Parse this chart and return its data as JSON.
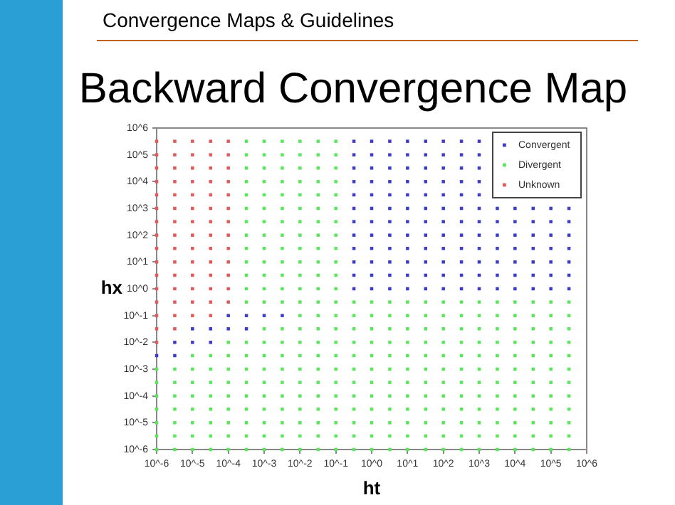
{
  "chart_data": {
    "type": "scatter",
    "title": "Backward Convergence Map",
    "annotations": [
      "Convergence Maps & Guidelines"
    ],
    "xlabel": "ht",
    "ylabel": "hx",
    "log": "xy",
    "grid": false,
    "legend": "top right",
    "marker": "square",
    "xlim": [
      1e-06,
      1000000.0
    ],
    "ylim": [
      1e-06,
      1000000.0
    ],
    "xticks": [
      {
        "value": 1e-06,
        "label": "10^-6"
      },
      {
        "value": 1e-05,
        "label": "10^-5"
      },
      {
        "value": 0.0001,
        "label": "10^-4"
      },
      {
        "value": 0.001,
        "label": "10^-3"
      },
      {
        "value": 0.01,
        "label": "10^-2"
      },
      {
        "value": 0.1,
        "label": "10^-1"
      },
      {
        "value": 1,
        "label": "10^0"
      },
      {
        "value": 10,
        "label": "10^1"
      },
      {
        "value": 100,
        "label": "10^2"
      },
      {
        "value": 1000,
        "label": "10^3"
      },
      {
        "value": 10000.0,
        "label": "10^4"
      },
      {
        "value": 100000.0,
        "label": "10^5"
      },
      {
        "value": 1000000.0,
        "label": "10^6"
      }
    ],
    "yticks": [
      {
        "value": 1e-06,
        "label": "10^-6"
      },
      {
        "value": 1e-05,
        "label": "10^-5"
      },
      {
        "value": 0.0001,
        "label": "10^-4"
      },
      {
        "value": 0.001,
        "label": "10^-3"
      },
      {
        "value": 0.01,
        "label": "10^-2"
      },
      {
        "value": 0.1,
        "label": "10^-1"
      },
      {
        "value": 1,
        "label": "10^0"
      },
      {
        "value": 10,
        "label": "10^1"
      },
      {
        "value": 100,
        "label": "10^2"
      },
      {
        "value": 1000,
        "label": "10^3"
      },
      {
        "value": 10000.0,
        "label": "10^4"
      },
      {
        "value": 100000.0,
        "label": "10^5"
      },
      {
        "value": 1000000.0,
        "label": "10^6"
      }
    ],
    "series": [
      {
        "name": "Convergent",
        "color": "#3c3cc8",
        "x": [
          1e-06,
          3.2e-06,
          3.2e-06,
          1e-05,
          1e-05,
          3.2e-05,
          3.2e-05,
          0.0001,
          0.0001,
          0.00032,
          0.00032,
          0.001,
          0.0032,
          0.32,
          0.32,
          0.32,
          0.32,
          0.32,
          0.32,
          0.32,
          0.32,
          0.32,
          0.32,
          0.32,
          0.32,
          1,
          1,
          1,
          1,
          1,
          1,
          1,
          1,
          1,
          1,
          1,
          1,
          3.2,
          3.2,
          3.2,
          3.2,
          3.2,
          3.2,
          3.2,
          3.2,
          3.2,
          3.2,
          3.2,
          3.2,
          10,
          10,
          10,
          10,
          10,
          10,
          10,
          10,
          10,
          10,
          10,
          10,
          32,
          32,
          32,
          32,
          32,
          32,
          32,
          32,
          32,
          32,
          32,
          32,
          100,
          100,
          100,
          100,
          100,
          100,
          100,
          100,
          100,
          100,
          100,
          100,
          320,
          320,
          320,
          320,
          320,
          320,
          320,
          320,
          320,
          320,
          320,
          320,
          1000,
          1000,
          1000,
          1000,
          1000,
          1000,
          1000,
          1000,
          1000,
          1000,
          1000,
          1000,
          3200,
          3200,
          3200,
          3200,
          3200,
          3200,
          3200,
          10000.0,
          10000.0,
          10000.0,
          10000.0,
          10000.0,
          10000.0,
          10000.0,
          32000.0,
          32000.0,
          32000.0,
          32000.0,
          32000.0,
          32000.0,
          32000.0,
          100000.0,
          100000.0,
          100000.0,
          100000.0,
          100000.0,
          100000.0,
          100000.0,
          320000.0,
          320000.0,
          320000.0,
          320000.0,
          320000.0,
          320000.0,
          320000.0
        ],
        "values": [
          0.0032,
          0.0032,
          0.01,
          0.01,
          0.032,
          0.01,
          0.032,
          0.032,
          0.1,
          0.032,
          0.1,
          0.1,
          0.1,
          1,
          3.2,
          10,
          32,
          100,
          320,
          1000,
          3200,
          10000.0,
          32000.0,
          100000.0,
          320000.0,
          1,
          3.2,
          10,
          32,
          100,
          320,
          1000,
          3200,
          10000.0,
          32000.0,
          100000.0,
          320000.0,
          1,
          3.2,
          10,
          32,
          100,
          320,
          1000,
          3200,
          10000.0,
          32000.0,
          100000.0,
          320000.0,
          1,
          3.2,
          10,
          32,
          100,
          320,
          1000,
          3200,
          10000.0,
          32000.0,
          100000.0,
          320000.0,
          1,
          3.2,
          10,
          32,
          100,
          320,
          1000,
          3200,
          10000.0,
          32000.0,
          100000.0,
          320000.0,
          1,
          3.2,
          10,
          32,
          100,
          320,
          1000,
          3200,
          10000.0,
          32000.0,
          100000.0,
          320000.0,
          1,
          3.2,
          10,
          32,
          100,
          320,
          1000,
          3200,
          10000.0,
          32000.0,
          100000.0,
          320000.0,
          1,
          3.2,
          10,
          32,
          100,
          320,
          1000,
          3200,
          10000.0,
          32000.0,
          100000.0,
          320000.0,
          1,
          3.2,
          10,
          32,
          100,
          320,
          1000,
          1,
          3.2,
          10,
          32,
          100,
          320,
          1000,
          1,
          3.2,
          10,
          32,
          100,
          320,
          1000,
          1,
          3.2,
          10,
          32,
          100,
          320,
          1000,
          1,
          3.2,
          10,
          32,
          100,
          320,
          1000
        ]
      },
      {
        "name": "Divergent",
        "color": "#5ae65a",
        "x": [
          1e-06,
          1e-06,
          1e-06,
          1e-06,
          1e-06,
          1e-06,
          1e-06,
          3.2e-06,
          3.2e-06,
          3.2e-06,
          3.2e-06,
          3.2e-06,
          3.2e-06,
          3.2e-06,
          1e-05,
          1e-05,
          1e-05,
          1e-05,
          1e-05,
          1e-05,
          1e-05,
          1e-05,
          3.2e-05,
          3.2e-05,
          3.2e-05,
          3.2e-05,
          3.2e-05,
          3.2e-05,
          3.2e-05,
          3.2e-05,
          0.0001,
          0.0001,
          0.0001,
          0.0001,
          0.0001,
          0.0001,
          0.0001,
          0.0001,
          0.0001,
          0.00032,
          0.00032,
          0.00032,
          0.00032,
          0.00032,
          0.00032,
          0.00032,
          0.00032,
          0.00032,
          0.00032,
          0.00032,
          0.00032,
          0.00032,
          0.00032,
          0.00032,
          0.00032,
          0.00032,
          0.00032,
          0.00032,
          0.00032,
          0.00032,
          0.00032,
          0.001,
          0.001,
          0.001,
          0.001,
          0.001,
          0.001,
          0.001,
          0.001,
          0.001,
          0.001,
          0.001,
          0.001,
          0.001,
          0.001,
          0.001,
          0.001,
          0.001,
          0.001,
          0.001,
          0.001,
          0.001,
          0.001,
          0.001,
          0.0032,
          0.0032,
          0.0032,
          0.0032,
          0.0032,
          0.0032,
          0.0032,
          0.0032,
          0.0032,
          0.0032,
          0.0032,
          0.0032,
          0.0032,
          0.0032,
          0.0032,
          0.0032,
          0.0032,
          0.0032,
          0.0032,
          0.0032,
          0.0032,
          0.0032,
          0.0032,
          0.01,
          0.01,
          0.01,
          0.01,
          0.01,
          0.01,
          0.01,
          0.01,
          0.01,
          0.01,
          0.01,
          0.01,
          0.01,
          0.01,
          0.01,
          0.01,
          0.01,
          0.01,
          0.01,
          0.01,
          0.01,
          0.01,
          0.01,
          0.01,
          0.032,
          0.032,
          0.032,
          0.032,
          0.032,
          0.032,
          0.032,
          0.032,
          0.032,
          0.032,
          0.032,
          0.032,
          0.032,
          0.032,
          0.032,
          0.032,
          0.032,
          0.032,
          0.032,
          0.032,
          0.032,
          0.032,
          0.032,
          0.032,
          0.1,
          0.1,
          0.1,
          0.1,
          0.1,
          0.1,
          0.1,
          0.1,
          0.1,
          0.1,
          0.1,
          0.1,
          0.1,
          0.1,
          0.1,
          0.1,
          0.1,
          0.1,
          0.1,
          0.1,
          0.1,
          0.1,
          0.1,
          0.1,
          0.32,
          0.32,
          0.32,
          0.32,
          0.32,
          0.32,
          0.32,
          0.32,
          0.32,
          0.32,
          0.32,
          0.32,
          1,
          1,
          1,
          1,
          1,
          1,
          1,
          1,
          1,
          1,
          1,
          1,
          3.2,
          3.2,
          3.2,
          3.2,
          3.2,
          3.2,
          3.2,
          3.2,
          3.2,
          3.2,
          3.2,
          3.2,
          10,
          10,
          10,
          10,
          10,
          10,
          10,
          10,
          10,
          10,
          10,
          10,
          32,
          32,
          32,
          32,
          32,
          32,
          32,
          32,
          32,
          32,
          32,
          32,
          100,
          100,
          100,
          100,
          100,
          100,
          100,
          100,
          100,
          100,
          100,
          100,
          320,
          320,
          320,
          320,
          320,
          320,
          320,
          320,
          320,
          320,
          320,
          320,
          1000,
          1000,
          1000,
          1000,
          1000,
          1000,
          1000,
          1000,
          1000,
          1000,
          1000,
          1000,
          3200,
          3200,
          3200,
          3200,
          3200,
          3200,
          3200,
          3200,
          3200,
          3200,
          3200,
          3200,
          10000.0,
          10000.0,
          10000.0,
          10000.0,
          10000.0,
          10000.0,
          10000.0,
          10000.0,
          10000.0,
          10000.0,
          10000.0,
          10000.0,
          32000.0,
          32000.0,
          32000.0,
          32000.0,
          32000.0,
          32000.0,
          32000.0,
          32000.0,
          32000.0,
          32000.0,
          32000.0,
          32000.0,
          100000.0,
          100000.0,
          100000.0,
          100000.0,
          100000.0,
          100000.0,
          100000.0,
          100000.0,
          100000.0,
          100000.0,
          100000.0,
          100000.0,
          320000.0,
          320000.0,
          320000.0,
          320000.0,
          320000.0,
          320000.0,
          320000.0,
          320000.0,
          320000.0,
          320000.0,
          320000.0,
          320000.0
        ],
        "values": [
          1e-06,
          3.2e-06,
          1e-05,
          3.2e-05,
          0.0001,
          0.00032,
          0.001,
          1e-06,
          3.2e-06,
          1e-05,
          3.2e-05,
          0.0001,
          0.00032,
          0.001,
          1e-06,
          3.2e-06,
          1e-05,
          3.2e-05,
          0.0001,
          0.00032,
          0.001,
          0.0032,
          1e-06,
          3.2e-06,
          1e-05,
          3.2e-05,
          0.0001,
          0.00032,
          0.001,
          0.0032,
          1e-06,
          3.2e-06,
          1e-05,
          3.2e-05,
          0.0001,
          0.00032,
          0.001,
          0.0032,
          0.01,
          1e-06,
          3.2e-06,
          1e-05,
          3.2e-05,
          0.0001,
          0.00032,
          0.001,
          0.0032,
          0.01,
          0.32,
          1,
          3.2,
          10,
          32,
          100,
          320,
          1000,
          3200,
          10000.0,
          32000.0,
          100000.0,
          320000.0,
          1e-06,
          3.2e-06,
          1e-05,
          3.2e-05,
          0.0001,
          0.00032,
          0.001,
          0.0032,
          0.01,
          0.032,
          0.32,
          1,
          3.2,
          10,
          32,
          100,
          320,
          1000,
          3200,
          10000.0,
          32000.0,
          100000.0,
          320000.0,
          1e-06,
          3.2e-06,
          1e-05,
          3.2e-05,
          0.0001,
          0.00032,
          0.001,
          0.0032,
          0.01,
          0.032,
          0.32,
          1,
          3.2,
          10,
          32,
          100,
          320,
          1000,
          3200,
          10000.0,
          32000.0,
          100000.0,
          320000.0,
          1e-06,
          3.2e-06,
          1e-05,
          3.2e-05,
          0.0001,
          0.00032,
          0.001,
          0.0032,
          0.01,
          0.032,
          0.1,
          0.32,
          1,
          3.2,
          10,
          32,
          100,
          320,
          1000,
          3200,
          10000.0,
          32000.0,
          100000.0,
          320000.0,
          1e-06,
          3.2e-06,
          1e-05,
          3.2e-05,
          0.0001,
          0.00032,
          0.001,
          0.0032,
          0.01,
          0.032,
          0.1,
          0.32,
          1,
          3.2,
          10,
          32,
          100,
          320,
          1000,
          3200,
          10000.0,
          32000.0,
          100000.0,
          320000.0,
          1e-06,
          3.2e-06,
          1e-05,
          3.2e-05,
          0.0001,
          0.00032,
          0.001,
          0.0032,
          0.01,
          0.032,
          0.1,
          0.32,
          1,
          3.2,
          10,
          32,
          100,
          320,
          1000,
          3200,
          10000.0,
          32000.0,
          100000.0,
          320000.0,
          1e-06,
          3.2e-06,
          1e-05,
          3.2e-05,
          0.0001,
          0.00032,
          0.001,
          0.0032,
          0.01,
          0.032,
          0.1,
          0.32,
          1e-06,
          3.2e-06,
          1e-05,
          3.2e-05,
          0.0001,
          0.00032,
          0.001,
          0.0032,
          0.01,
          0.032,
          0.1,
          0.32,
          1e-06,
          3.2e-06,
          1e-05,
          3.2e-05,
          0.0001,
          0.00032,
          0.001,
          0.0032,
          0.01,
          0.032,
          0.1,
          0.32,
          1e-06,
          3.2e-06,
          1e-05,
          3.2e-05,
          0.0001,
          0.00032,
          0.001,
          0.0032,
          0.01,
          0.032,
          0.1,
          0.32,
          1e-06,
          3.2e-06,
          1e-05,
          3.2e-05,
          0.0001,
          0.00032,
          0.001,
          0.0032,
          0.01,
          0.032,
          0.1,
          0.32,
          1e-06,
          3.2e-06,
          1e-05,
          3.2e-05,
          0.0001,
          0.00032,
          0.001,
          0.0032,
          0.01,
          0.032,
          0.1,
          0.32,
          1e-06,
          3.2e-06,
          1e-05,
          3.2e-05,
          0.0001,
          0.00032,
          0.001,
          0.0032,
          0.01,
          0.032,
          0.1,
          0.32,
          1e-06,
          3.2e-06,
          1e-05,
          3.2e-05,
          0.0001,
          0.00032,
          0.001,
          0.0032,
          0.01,
          0.032,
          0.1,
          0.32,
          1e-06,
          3.2e-06,
          1e-05,
          3.2e-05,
          0.0001,
          0.00032,
          0.001,
          0.0032,
          0.01,
          0.032,
          0.1,
          0.32,
          1e-06,
          3.2e-06,
          1e-05,
          3.2e-05,
          0.0001,
          0.00032,
          0.001,
          0.0032,
          0.01,
          0.032,
          0.1,
          0.32,
          1e-06,
          3.2e-06,
          1e-05,
          3.2e-05,
          0.0001,
          0.00032,
          0.001,
          0.0032,
          0.01,
          0.032,
          0.1,
          0.32,
          1e-06,
          3.2e-06,
          1e-05,
          3.2e-05,
          0.0001,
          0.00032,
          0.001,
          0.0032,
          0.01,
          0.032,
          0.1,
          0.32,
          1e-06,
          3.2e-06,
          1e-05,
          3.2e-05,
          0.0001,
          0.00032,
          0.001,
          0.0032,
          0.01,
          0.032,
          0.1,
          0.32
        ]
      },
      {
        "name": "Unknown",
        "color": "#e05a5a",
        "x": [
          1e-06,
          1e-06,
          1e-06,
          1e-06,
          1e-06,
          1e-06,
          1e-06,
          1e-06,
          1e-06,
          1e-06,
          1e-06,
          1e-06,
          1e-06,
          1e-06,
          1e-06,
          1e-06,
          3.2e-06,
          3.2e-06,
          3.2e-06,
          3.2e-06,
          3.2e-06,
          3.2e-06,
          3.2e-06,
          3.2e-06,
          3.2e-06,
          3.2e-06,
          3.2e-06,
          3.2e-06,
          3.2e-06,
          3.2e-06,
          3.2e-06,
          1e-05,
          1e-05,
          1e-05,
          1e-05,
          1e-05,
          1e-05,
          1e-05,
          1e-05,
          1e-05,
          1e-05,
          1e-05,
          1e-05,
          1e-05,
          1e-05,
          3.2e-05,
          3.2e-05,
          3.2e-05,
          3.2e-05,
          3.2e-05,
          3.2e-05,
          3.2e-05,
          3.2e-05,
          3.2e-05,
          3.2e-05,
          3.2e-05,
          3.2e-05,
          3.2e-05,
          3.2e-05,
          0.0001,
          0.0001,
          0.0001,
          0.0001,
          0.0001,
          0.0001,
          0.0001,
          0.0001,
          0.0001,
          0.0001,
          0.0001,
          0.0001,
          0.0001
        ],
        "values": [
          0.01,
          0.032,
          0.1,
          0.32,
          1,
          3.2,
          10,
          32,
          100,
          320,
          1000,
          3200,
          10000.0,
          32000.0,
          100000.0,
          320000.0,
          0.032,
          0.1,
          0.32,
          1,
          3.2,
          10,
          32,
          100,
          320,
          1000,
          3200,
          10000.0,
          32000.0,
          100000.0,
          320000.0,
          0.1,
          0.32,
          1,
          3.2,
          10,
          32,
          100,
          320,
          1000,
          3200,
          10000.0,
          32000.0,
          100000.0,
          320000.0,
          0.1,
          0.32,
          1,
          3.2,
          10,
          32,
          100,
          320,
          1000,
          3200,
          10000.0,
          32000.0,
          100000.0,
          320000.0,
          0.32,
          1,
          3.2,
          10,
          32,
          100,
          320,
          1000,
          3200,
          10000.0,
          32000.0,
          100000.0,
          320000.0
        ]
      }
    ]
  }
}
